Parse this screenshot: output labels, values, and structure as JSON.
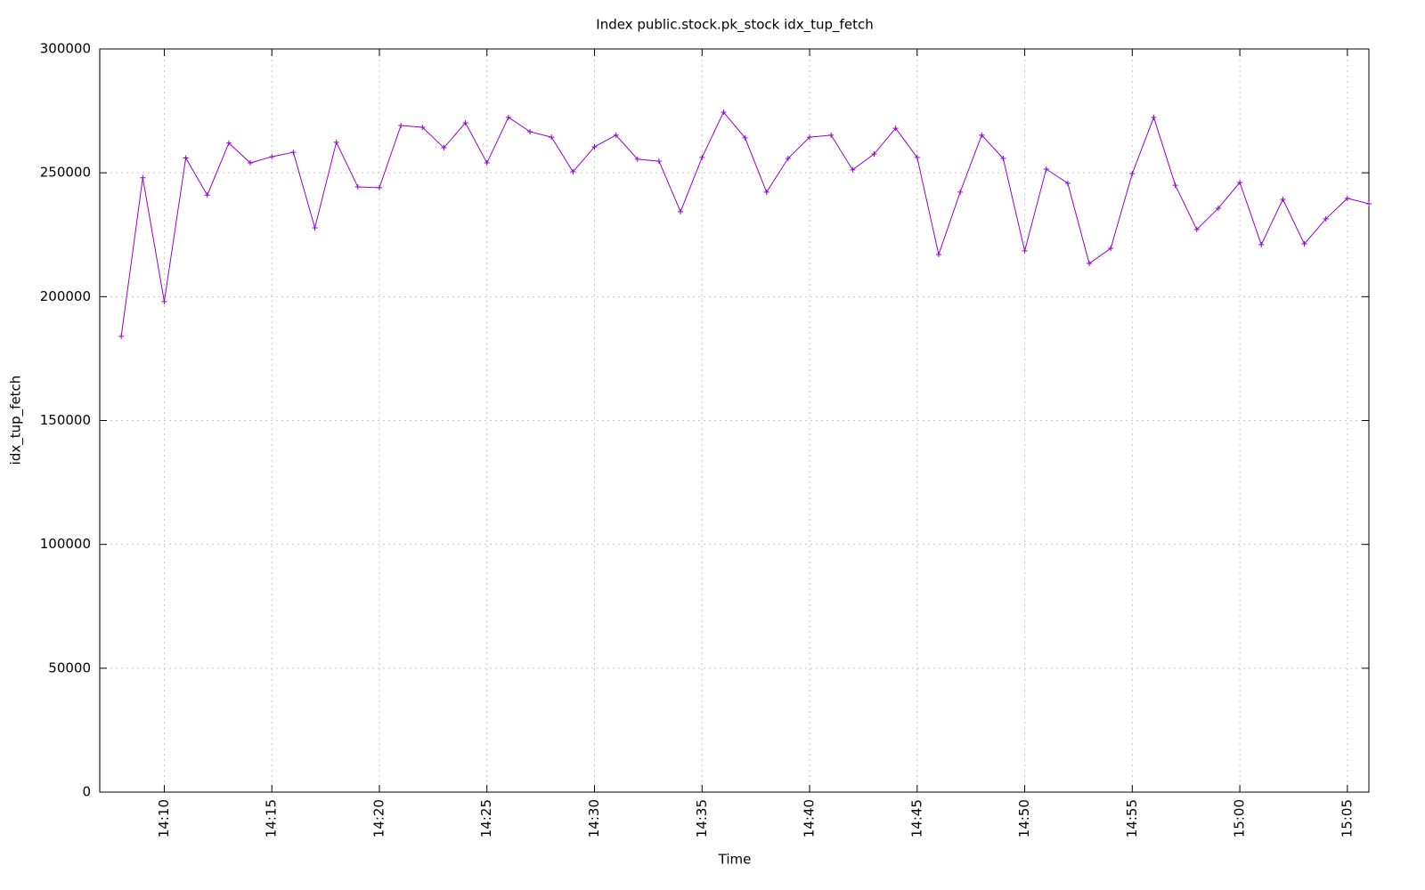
{
  "chart_data": {
    "type": "line",
    "title": "Index public.stock.pk_stock idx_tup_fetch",
    "x_label": "Time",
    "y_label": "idx_tup_fetch",
    "x": [
      "14:08",
      "14:09",
      "14:10",
      "14:11",
      "14:12",
      "14:13",
      "14:14",
      "14:15",
      "14:16",
      "14:17",
      "14:18",
      "14:19",
      "14:20",
      "14:21",
      "14:22",
      "14:23",
      "14:24",
      "14:25",
      "14:26",
      "14:27",
      "14:28",
      "14:29",
      "14:30",
      "14:31",
      "14:32",
      "14:33",
      "14:34",
      "14:35",
      "14:36",
      "14:37",
      "14:38",
      "14:39",
      "14:40",
      "14:41",
      "14:42",
      "14:43",
      "14:44",
      "14:45",
      "14:46",
      "14:47",
      "14:48",
      "14:49",
      "14:50",
      "14:51",
      "14:52",
      "14:53",
      "14:54",
      "14:55",
      "14:56",
      "14:57",
      "14:58",
      "14:59",
      "15:00",
      "15:01",
      "15:02",
      "15:03",
      "15:04",
      "15:05",
      "15:06"
    ],
    "series": [
      {
        "name": "idx_tup_fetch",
        "color": "#9400d3",
        "values": [
          184000,
          248000,
          198000,
          256000,
          241000,
          262000,
          254000,
          256500,
          258300,
          227800,
          262300,
          244300,
          244000,
          269100,
          268400,
          260100,
          270200,
          254000,
          272400,
          266600,
          264400,
          250400,
          260500,
          265200,
          255500,
          254700,
          234300,
          256200,
          274500,
          264100,
          242200,
          255800,
          264400,
          265200,
          251200,
          257600,
          268000,
          256200,
          217000,
          242200,
          265200,
          255800,
          218500,
          251500,
          245800,
          213400,
          219500,
          249700,
          272400,
          245000,
          227100,
          235700,
          246100,
          221000,
          239300,
          221300,
          231400,
          239700,
          237500
        ]
      }
    ],
    "xlim": [
      "14:07",
      "15:06"
    ],
    "xticks": [
      "14:10",
      "14:15",
      "14:20",
      "14:25",
      "14:30",
      "14:35",
      "14:40",
      "14:45",
      "14:50",
      "14:55",
      "15:00",
      "15:05"
    ],
    "ylim": [
      0,
      300000
    ],
    "yticks": [
      0,
      50000,
      100000,
      150000,
      200000,
      250000,
      300000
    ],
    "grid": true
  }
}
